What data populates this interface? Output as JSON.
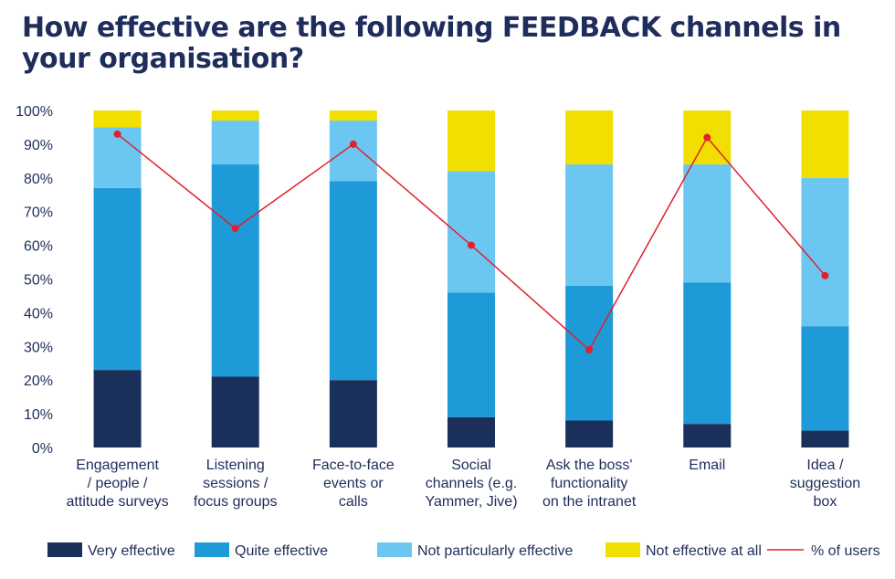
{
  "chart_data": {
    "type": "bar",
    "stacked": true,
    "title": "How effective are the following FEEDBACK channels in your organisation?",
    "ylim": [
      0,
      100
    ],
    "yticks": [
      "0%",
      "10%",
      "20%",
      "30%",
      "40%",
      "50%",
      "60%",
      "70%",
      "80%",
      "90%",
      "100%"
    ],
    "grid": false,
    "legend_position": "bottom",
    "categories": [
      [
        "Engagement",
        "/ people /",
        "attitude surveys"
      ],
      [
        "Listening",
        "sessions /",
        "focus groups"
      ],
      [
        "Face-to-face",
        "events or",
        "calls"
      ],
      [
        "Social",
        "channels (e.g.",
        "Yammer, Jive)"
      ],
      [
        "Ask the boss'",
        "functionality",
        "on the intranet"
      ],
      [
        "Email"
      ],
      [
        "Idea /",
        "suggestion",
        "box"
      ]
    ],
    "series": [
      {
        "name": "Very effective",
        "color": "#1b2f5b",
        "values": [
          23,
          21,
          20,
          9,
          8,
          7,
          5
        ]
      },
      {
        "name": "Quite effective",
        "color": "#1e9ad8",
        "values": [
          54,
          63,
          59,
          37,
          40,
          42,
          31
        ]
      },
      {
        "name": "Not particularly effective",
        "color": "#6bc7f1",
        "values": [
          18,
          13,
          18,
          36,
          36,
          35,
          44
        ]
      },
      {
        "name": "Not effective at all",
        "color": "#f0df00",
        "values": [
          5,
          3,
          3,
          18,
          16,
          16,
          20
        ]
      }
    ],
    "line_series": {
      "name": "% of users",
      "color": "#e0202e",
      "values": [
        93,
        65,
        90,
        60,
        29,
        92,
        51
      ]
    }
  }
}
